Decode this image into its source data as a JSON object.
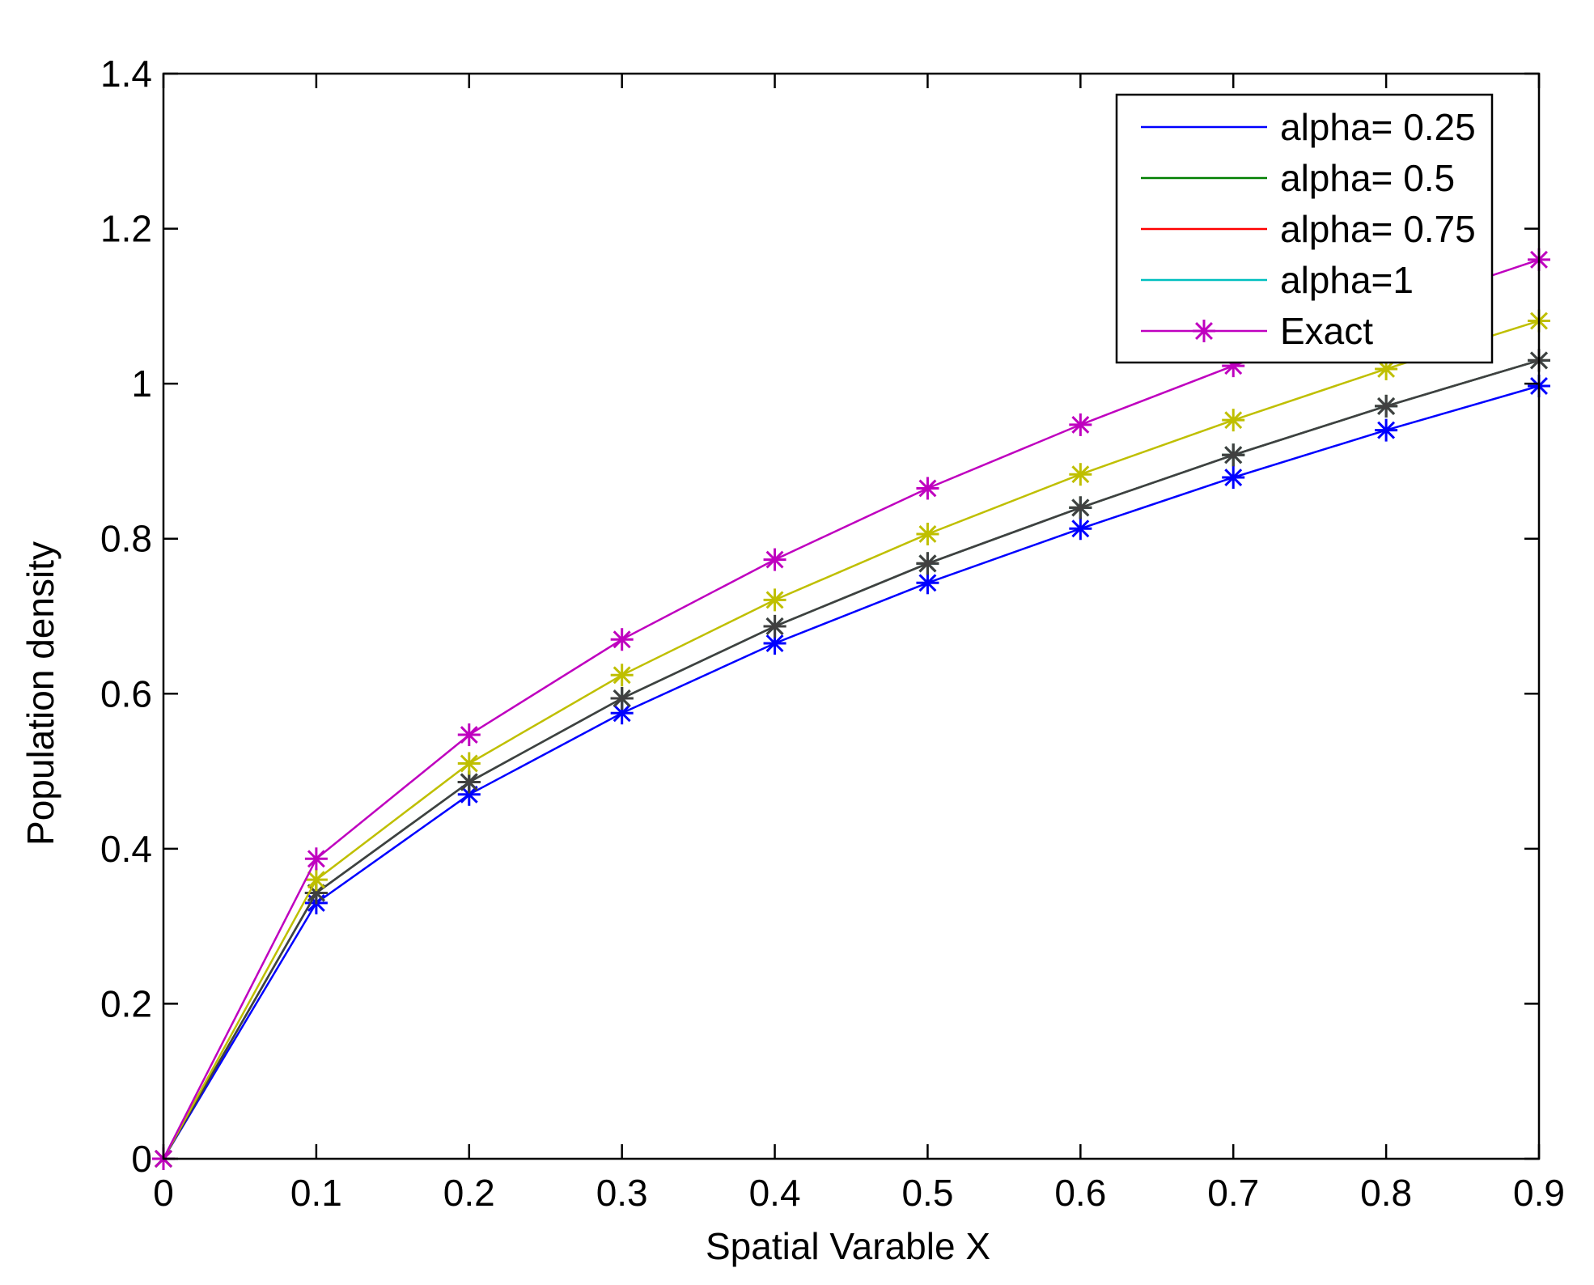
{
  "chart_data": {
    "type": "line",
    "xlabel": "Spatial Varable X",
    "ylabel": "Population density",
    "xlim": [
      0,
      0.9
    ],
    "ylim": [
      0,
      1.4
    ],
    "x_ticks": [
      "0",
      "0.1",
      "0.2",
      "0.3",
      "0.4",
      "0.5",
      "0.6",
      "0.7",
      "0.8",
      "0.9"
    ],
    "y_ticks": [
      "0",
      "0.2",
      "0.4",
      "0.6",
      "0.8",
      "1",
      "1.2",
      "1.4"
    ],
    "x": [
      0,
      0.1,
      0.2,
      0.3,
      0.4,
      0.5,
      0.6,
      0.7,
      0.8,
      0.9
    ],
    "grid": false,
    "legend_position": "top-right",
    "series": [
      {
        "name": "alpha= 0.25",
        "color": "#0000ff",
        "marker": "star",
        "values": [
          0,
          0.33,
          0.47,
          0.575,
          0.665,
          0.743,
          0.813,
          0.879,
          0.94,
          0.997
        ]
      },
      {
        "name": "alpha= 0.5",
        "color": "#007f00",
        "marker": "star",
        "hidden_by_overlap": true,
        "values": [
          0,
          0.343,
          0.486,
          0.594,
          0.687,
          0.768,
          0.84,
          0.908,
          0.971,
          1.03
        ]
      },
      {
        "name": "alpha= 0.75",
        "color": "#ff0000",
        "marker": "star",
        "hidden_by_overlap": true,
        "values": [
          0,
          0.343,
          0.486,
          0.594,
          0.687,
          0.768,
          0.84,
          0.908,
          0.971,
          1.03
        ]
      },
      {
        "name": "alpha=1",
        "color": "#00bfbf",
        "marker": "star",
        "hidden_by_overlap": true,
        "values": [
          0,
          0.343,
          0.486,
          0.594,
          0.687,
          0.768,
          0.84,
          0.908,
          0.971,
          1.03
        ]
      },
      {
        "name": "",
        "color": "#404040",
        "marker": "star",
        "values": [
          0,
          0.343,
          0.486,
          0.594,
          0.687,
          0.768,
          0.84,
          0.908,
          0.971,
          1.03
        ]
      },
      {
        "name": "",
        "color": "#bfbf00",
        "marker": "star",
        "values": [
          0,
          0.36,
          0.51,
          0.624,
          0.721,
          0.806,
          0.883,
          0.953,
          1.019,
          1.081
        ]
      },
      {
        "name": "Exact",
        "color": "#bf00bf",
        "marker": "star",
        "values": [
          0,
          0.387,
          0.547,
          0.67,
          0.773,
          0.865,
          0.947,
          1.023,
          1.094,
          1.16
        ]
      }
    ],
    "legend": [
      {
        "label": "alpha= 0.25",
        "color": "#0000ff",
        "marker": false
      },
      {
        "label": "alpha= 0.5",
        "color": "#007f00",
        "marker": false
      },
      {
        "label": "alpha= 0.75",
        "color": "#ff0000",
        "marker": false
      },
      {
        "label": "alpha=1",
        "color": "#00bfbf",
        "marker": false
      },
      {
        "label": "Exact",
        "color": "#bf00bf",
        "marker": true
      }
    ]
  }
}
